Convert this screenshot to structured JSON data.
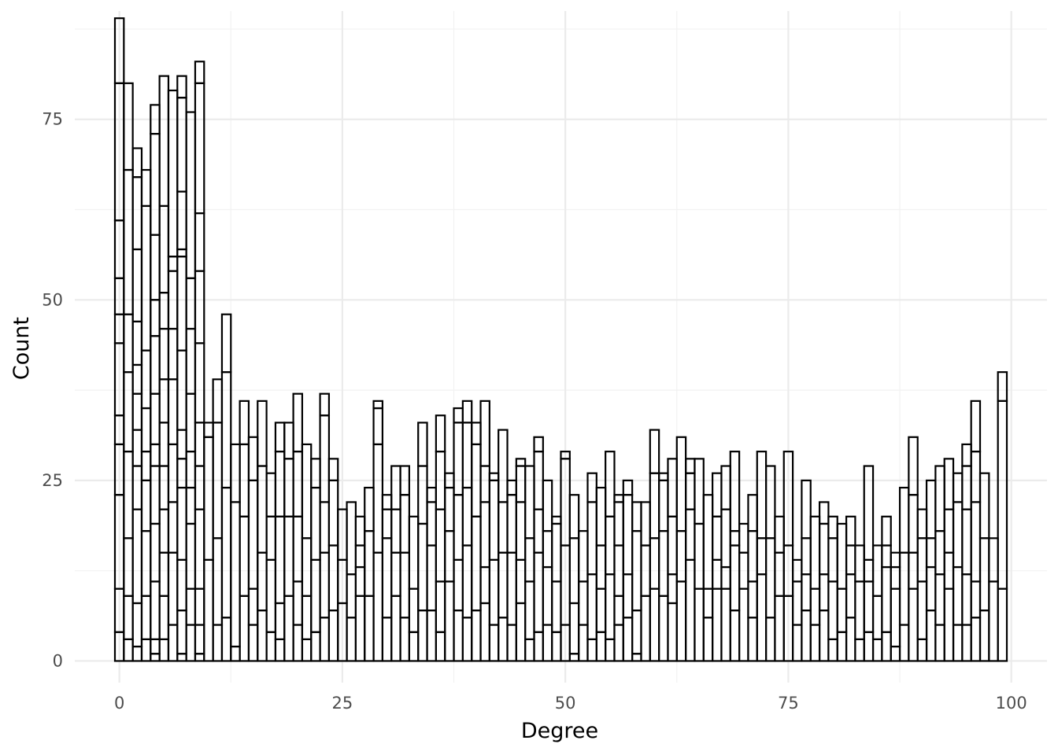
{
  "chart_data": {
    "type": "bar",
    "subtype": "stacked histogram (outlined bins, no fill)",
    "xlabel": "Degree",
    "ylabel": "Count",
    "xlim": [
      -5,
      104
    ],
    "ylim": [
      -3,
      90
    ],
    "x_ticks": [
      0,
      25,
      50,
      75,
      100
    ],
    "x_tick_labels": [
      "0",
      "25",
      "50",
      "75",
      "100"
    ],
    "y_ticks": [
      0,
      25,
      50,
      75
    ],
    "y_tick_labels": [
      "0",
      "25",
      "50",
      "75"
    ],
    "grid": true,
    "legend": "none",
    "bin_width": 1,
    "x": [
      0,
      1,
      2,
      3,
      4,
      5,
      6,
      7,
      8,
      9,
      10,
      11,
      12,
      13,
      14,
      15,
      16,
      17,
      18,
      19,
      20,
      21,
      22,
      23,
      24,
      25,
      26,
      27,
      28,
      29,
      30,
      31,
      32,
      33,
      34,
      35,
      36,
      37,
      38,
      39,
      40,
      41,
      42,
      43,
      44,
      45,
      46,
      47,
      48,
      49,
      50,
      51,
      52,
      53,
      54,
      55,
      56,
      57,
      58,
      59,
      60,
      61,
      62,
      63,
      64,
      65,
      66,
      67,
      68,
      69,
      70,
      71,
      72,
      73,
      74,
      75,
      76,
      77,
      78,
      79,
      80,
      81,
      82,
      83,
      84,
      85,
      86,
      87,
      88,
      89,
      90,
      91,
      92,
      93,
      94,
      95,
      96,
      97,
      98,
      99
    ],
    "stack_boundaries": [
      [
        4,
        10,
        23,
        30,
        34,
        44,
        48,
        53,
        61,
        80,
        89
      ],
      [
        3,
        9,
        17,
        29,
        40,
        48,
        68,
        80
      ],
      [
        2,
        8,
        21,
        27,
        32,
        37,
        41,
        47,
        57,
        67,
        71
      ],
      [
        3,
        9,
        18,
        25,
        29,
        35,
        43,
        63,
        68
      ],
      [
        1,
        3,
        11,
        19,
        27,
        30,
        37,
        45,
        50,
        59,
        73,
        77
      ],
      [
        3,
        9,
        15,
        21,
        27,
        33,
        39,
        46,
        51,
        63,
        81
      ],
      [
        5,
        15,
        22,
        30,
        39,
        46,
        54,
        56,
        79
      ],
      [
        1,
        7,
        14,
        24,
        28,
        32,
        43,
        56,
        57,
        65,
        78,
        81
      ],
      [
        5,
        10,
        19,
        24,
        29,
        37,
        46,
        53,
        76
      ],
      [
        1,
        5,
        10,
        21,
        27,
        33,
        44,
        54,
        62,
        80,
        83
      ],
      [
        14,
        31,
        33
      ],
      [
        5,
        17,
        33,
        39
      ],
      [
        6,
        24,
        40,
        48
      ],
      [
        2,
        22,
        30
      ],
      [
        9,
        20,
        30,
        36
      ],
      [
        5,
        10,
        25,
        31
      ],
      [
        7,
        15,
        27,
        36
      ],
      [
        4,
        14,
        20,
        26
      ],
      [
        3,
        8,
        20,
        29,
        33
      ],
      [
        9,
        20,
        28,
        33
      ],
      [
        5,
        11,
        20,
        29,
        37
      ],
      [
        3,
        9,
        17,
        30
      ],
      [
        4,
        14,
        24,
        28
      ],
      [
        6,
        15,
        22,
        34,
        37
      ],
      [
        7,
        16,
        25,
        28
      ],
      [
        8,
        14,
        21
      ],
      [
        6,
        12,
        22
      ],
      [
        9,
        13,
        16,
        20
      ],
      [
        9,
        18,
        24
      ],
      [
        15,
        30,
        35,
        36
      ],
      [
        6,
        17,
        21,
        23
      ],
      [
        9,
        15,
        21,
        27
      ],
      [
        6,
        15,
        23,
        27
      ],
      [
        4,
        10,
        20
      ],
      [
        7,
        19,
        27,
        33
      ],
      [
        7,
        16,
        22,
        24
      ],
      [
        4,
        11,
        21,
        29,
        34
      ],
      [
        11,
        18,
        24,
        26
      ],
      [
        7,
        14,
        23,
        33,
        35
      ],
      [
        6,
        16,
        24,
        33,
        36
      ],
      [
        7,
        20,
        30,
        33
      ],
      [
        8,
        13,
        22,
        27,
        36
      ],
      [
        5,
        14,
        25,
        26
      ],
      [
        6,
        15,
        22,
        32
      ],
      [
        5,
        15,
        23,
        25
      ],
      [
        8,
        14,
        22,
        27,
        28
      ],
      [
        3,
        11,
        17,
        27
      ],
      [
        4,
        15,
        21,
        29,
        31
      ],
      [
        5,
        13,
        18,
        25
      ],
      [
        4,
        11,
        19,
        20
      ],
      [
        5,
        16,
        28,
        29
      ],
      [
        1,
        8,
        17,
        23
      ],
      [
        5,
        11,
        18
      ],
      [
        3,
        12,
        22,
        26
      ],
      [
        4,
        10,
        16,
        24
      ],
      [
        3,
        12,
        20,
        29
      ],
      [
        5,
        9,
        16,
        22,
        23
      ],
      [
        6,
        12,
        23,
        25
      ],
      [
        1,
        7,
        18,
        22
      ],
      [
        9,
        16,
        22
      ],
      [
        10,
        17,
        26,
        32
      ],
      [
        9,
        18,
        25,
        26
      ],
      [
        8,
        12,
        20,
        28
      ],
      [
        11,
        18,
        31
      ],
      [
        14,
        21,
        26,
        28
      ],
      [
        10,
        19,
        28
      ],
      [
        6,
        10,
        23
      ],
      [
        10,
        14,
        20,
        26
      ],
      [
        10,
        13,
        21,
        27
      ],
      [
        7,
        16,
        18,
        29
      ],
      [
        10,
        15,
        19
      ],
      [
        6,
        11,
        18,
        23
      ],
      [
        12,
        17,
        29
      ],
      [
        6,
        17,
        27
      ],
      [
        9,
        15,
        20
      ],
      [
        9,
        16,
        29
      ],
      [
        5,
        11,
        14
      ],
      [
        7,
        12,
        17,
        25
      ],
      [
        5,
        10,
        20
      ],
      [
        7,
        12,
        19,
        22
      ],
      [
        3,
        11,
        17,
        20
      ],
      [
        4,
        10,
        19
      ],
      [
        6,
        12,
        16,
        20
      ],
      [
        3,
        11,
        16
      ],
      [
        4,
        11,
        14,
        27
      ],
      [
        3,
        9,
        16
      ],
      [
        4,
        13,
        16,
        20
      ],
      [
        2,
        10,
        13,
        15
      ],
      [
        5,
        15,
        24
      ],
      [
        10,
        15,
        23,
        31
      ],
      [
        3,
        11,
        17,
        21
      ],
      [
        7,
        13,
        17,
        25
      ],
      [
        5,
        12,
        18,
        27
      ],
      [
        10,
        15,
        21,
        28
      ],
      [
        5,
        13,
        22,
        26
      ],
      [
        5,
        12,
        21,
        27,
        30
      ],
      [
        6,
        11,
        22,
        29,
        36
      ],
      [
        7,
        17,
        26
      ],
      [
        11,
        17
      ],
      [
        10,
        36,
        40
      ]
    ]
  }
}
